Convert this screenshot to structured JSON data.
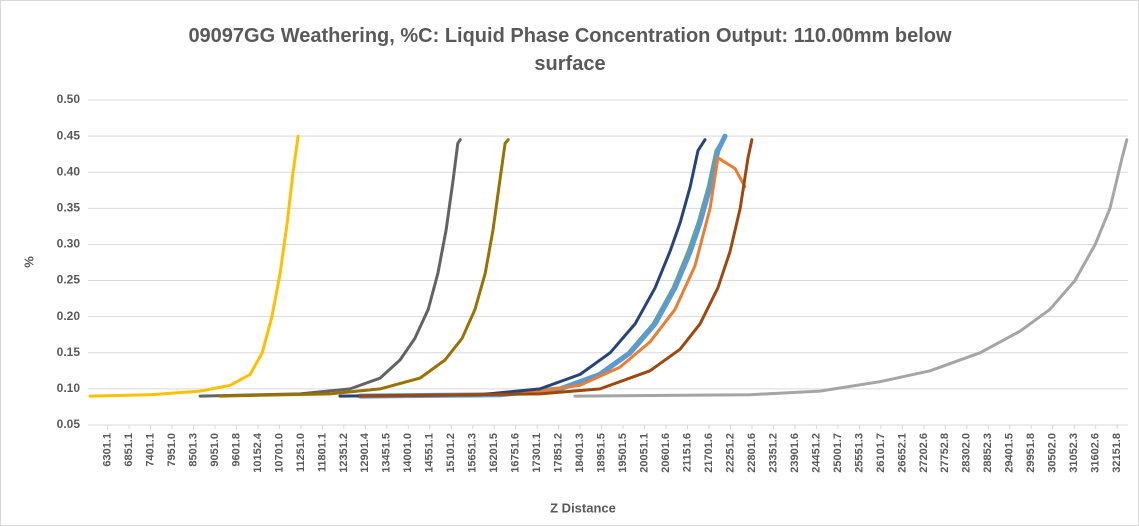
{
  "chart_data": {
    "type": "line",
    "title": "09097GG Weathering, %C: Liquid Phase Concentration Output: 110.00mm below surface",
    "x_label": "Z Distance",
    "y_label": "%",
    "xlim": [
      5800,
      32430
    ],
    "ylim": [
      0.05,
      0.5
    ],
    "grid": true,
    "xticks": [
      6301.1,
      6851.1,
      7401.1,
      {
        "value": 7951.0,
        "label": "7951.0"
      },
      8501.3,
      {
        "value": 9051.0,
        "label": "9051.0"
      },
      9601.8,
      10152.4,
      {
        "value": 10701.0,
        "label": "10701.0"
      },
      {
        "value": 11251.0,
        "label": "11251.0"
      },
      11801.1,
      12351.2,
      12901.4,
      13451.5,
      {
        "value": 14001.0,
        "label": "14001.0"
      },
      14551.1,
      15101.2,
      15651.3,
      16201.5,
      16751.6,
      17301.1,
      17851.2,
      18401.3,
      18951.5,
      19501.5,
      20051.1,
      20601.6,
      21151.6,
      21701.6,
      22251.2,
      22801.6,
      23351.2,
      23901.6,
      24451.2,
      25001.7,
      25551.3,
      26101.7,
      26652.1,
      27202.6,
      27752.8,
      {
        "value": 28302.0,
        "label": "28302.0"
      },
      28852.3,
      29401.5,
      29951.8,
      {
        "value": 30502.0,
        "label": "30502.0"
      },
      31052.3,
      31602.6,
      32151.8
    ],
    "yticks": [
      0.05,
      {
        "value": 0.1,
        "label": "0.10"
      },
      0.15,
      {
        "value": 0.2,
        "label": "0.20"
      },
      0.25,
      {
        "value": 0.3,
        "label": "0.30"
      },
      0.35,
      {
        "value": 0.4,
        "label": "0.40"
      },
      0.45,
      {
        "value": 0.5,
        "label": "0.50"
      }
    ],
    "series": [
      {
        "color": "#ffc000",
        "x": [
          5850,
          7390,
          8670,
          9440,
          9950,
          10260,
          10510,
          10720,
          10900,
          11050,
          11180
        ],
        "values": [
          0.09,
          0.092,
          0.097,
          0.105,
          0.12,
          0.15,
          0.2,
          0.26,
          0.33,
          0.4,
          0.45
        ]
      },
      {
        "color": "#636363",
        "x": [
          8670,
          11230,
          12510,
          13280,
          13790,
          14170,
          14510,
          14760,
          14970,
          15150,
          15270,
          15330
        ],
        "values": [
          0.09,
          0.093,
          0.1,
          0.115,
          0.14,
          0.17,
          0.21,
          0.26,
          0.32,
          0.39,
          0.44,
          0.445
        ]
      },
      {
        "color": "#997300",
        "x": [
          9180,
          12000,
          13280,
          14300,
          14940,
          15380,
          15710,
          15970,
          16170,
          16350,
          16480,
          16560
        ],
        "values": [
          0.09,
          0.093,
          0.1,
          0.115,
          0.14,
          0.17,
          0.21,
          0.26,
          0.32,
          0.39,
          0.44,
          0.445
        ]
      },
      {
        "color": "#a5a5a5",
        "x": [
          18270,
          22750,
          24540,
          26080,
          27360,
          28640,
          29670,
          30430,
          31070,
          31590,
          31970,
          32280,
          32400
        ],
        "values": [
          0.09,
          0.092,
          0.097,
          0.11,
          0.125,
          0.15,
          0.18,
          0.21,
          0.25,
          0.3,
          0.35,
          0.42,
          0.445
        ]
      },
      {
        "color": "#70ad47",
        "x": [
          12720,
          16300,
          17840,
          18860,
          19630,
          20270,
          20780,
          21160,
          21420,
          21680,
          21880,
          22060
        ],
        "values": [
          0.09,
          0.092,
          0.1,
          0.12,
          0.15,
          0.19,
          0.24,
          0.29,
          0.33,
          0.38,
          0.43,
          0.445
        ]
      },
      {
        "color": "#5b9bd5",
        "x": [
          12770,
          16350,
          17890,
          18910,
          19680,
          20320,
          20830,
          21220,
          21470,
          21730,
          21930,
          22110
        ],
        "values": [
          0.09,
          0.092,
          0.1,
          0.12,
          0.15,
          0.19,
          0.24,
          0.29,
          0.33,
          0.38,
          0.43,
          0.45
        ]
      },
      {
        "color": "#ed7d31",
        "x": [
          12770,
          16860,
          18400,
          19420,
          20190,
          20830,
          21340,
          21730,
          21930,
          22370,
          22620
        ],
        "values": [
          0.09,
          0.093,
          0.105,
          0.13,
          0.165,
          0.21,
          0.27,
          0.35,
          0.42,
          0.405,
          0.38
        ]
      },
      {
        "color": "#264478",
        "x": [
          12250,
          15840,
          17370,
          18400,
          19170,
          19810,
          20320,
          20700,
          20960,
          21220,
          21420,
          21600
        ],
        "values": [
          0.09,
          0.092,
          0.1,
          0.12,
          0.15,
          0.19,
          0.24,
          0.29,
          0.33,
          0.38,
          0.43,
          0.445
        ]
      },
      {
        "color": "#9e480e",
        "x": [
          12770,
          17370,
          18910,
          20190,
          20960,
          21470,
          21930,
          22240,
          22500,
          22700,
          22800
        ],
        "values": [
          0.09,
          0.093,
          0.1,
          0.125,
          0.155,
          0.19,
          0.24,
          0.29,
          0.35,
          0.42,
          0.445
        ]
      }
    ]
  }
}
